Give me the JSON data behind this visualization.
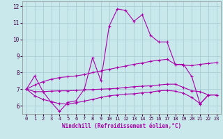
{
  "xlabel": "Windchill (Refroidissement éolien,°C)",
  "xlim": [
    -0.5,
    23.5
  ],
  "ylim": [
    5.5,
    12.3
  ],
  "yticks": [
    6,
    7,
    8,
    9,
    10,
    11,
    12
  ],
  "xticks": [
    0,
    1,
    2,
    3,
    4,
    5,
    6,
    7,
    8,
    9,
    10,
    11,
    12,
    13,
    14,
    15,
    16,
    17,
    18,
    19,
    20,
    21,
    22,
    23
  ],
  "bg_color": "#c8e8ec",
  "grid_color": "#aaccd4",
  "line_color": "#aa00aa",
  "line1_y": [
    7.0,
    7.8,
    6.85,
    6.2,
    5.65,
    6.2,
    6.3,
    7.0,
    8.9,
    7.5,
    10.8,
    11.85,
    11.75,
    11.1,
    11.5,
    10.25,
    9.85,
    9.85,
    8.5,
    8.5,
    7.75,
    6.1,
    6.65,
    6.65
  ],
  "line2_y": [
    7.0,
    7.25,
    7.45,
    7.6,
    7.7,
    7.75,
    7.8,
    7.88,
    8.0,
    8.1,
    8.2,
    8.3,
    8.4,
    8.5,
    8.58,
    8.68,
    8.75,
    8.8,
    8.5,
    8.45,
    8.42,
    8.5,
    8.55,
    8.6
  ],
  "line3_y": [
    7.0,
    6.85,
    6.85,
    6.88,
    6.9,
    6.9,
    6.92,
    6.95,
    6.98,
    7.0,
    7.02,
    7.05,
    7.1,
    7.15,
    7.18,
    7.2,
    7.25,
    7.3,
    7.3,
    7.1,
    6.9,
    6.85,
    6.65,
    6.65
  ],
  "line4_y": [
    7.0,
    6.6,
    6.38,
    6.25,
    6.12,
    6.1,
    6.18,
    6.28,
    6.38,
    6.5,
    6.6,
    6.65,
    6.7,
    6.72,
    6.78,
    6.82,
    6.9,
    6.92,
    6.88,
    6.75,
    6.5,
    6.12,
    6.65,
    6.65
  ]
}
